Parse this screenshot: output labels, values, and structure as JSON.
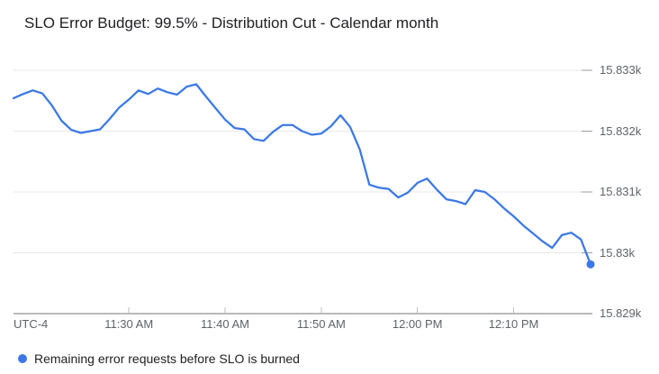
{
  "header": {
    "title": "SLO Error Budget: 99.5% - Distribution Cut - Calendar month"
  },
  "axes": {
    "utc_label": "UTC-4"
  },
  "legend": {
    "label": "Remaining error requests before SLO is burned"
  },
  "colors": {
    "accent": "#3b78e7",
    "grid": "#e8e8e8",
    "axis_line": "#757575",
    "tick": "#9e9e9e",
    "x_tick": "#bdbdbd",
    "muted_text": "#5f6368",
    "title_text": "#202124"
  },
  "chart_data": {
    "type": "line",
    "title": "SLO Error Budget: 99.5% - Distribution Cut - Calendar month",
    "xlabel": "Time (UTC-4)",
    "ylabel": "Remaining error requests before SLO is burned",
    "legend_position": "bottom-left",
    "grid": "horizontal",
    "y_axis_side": "right",
    "ylim": [
      15829,
      15833
    ],
    "x_range": [
      "11:18 AM",
      "12:18 PM"
    ],
    "y_ticks": [
      {
        "label": "15.833k",
        "value": 15833
      },
      {
        "label": "15.832k",
        "value": 15832
      },
      {
        "label": "15.831k",
        "value": 15831
      },
      {
        "label": "15.83k",
        "value": 15830
      },
      {
        "label": "15.829k",
        "value": 15829
      }
    ],
    "x_ticks": [
      {
        "label": "11:30 AM"
      },
      {
        "label": "11:40 AM"
      },
      {
        "label": "11:50 AM"
      },
      {
        "label": "12:00 PM"
      },
      {
        "label": "12:10 PM"
      }
    ],
    "series": [
      {
        "name": "Remaining error requests before SLO is burned",
        "color": "#3b78e7",
        "end_dot": true,
        "points": [
          {
            "t": "11:18 AM",
            "v": 15832.54
          },
          {
            "t": "11:19 AM",
            "v": 15832.61
          },
          {
            "t": "11:20 AM",
            "v": 15832.67
          },
          {
            "t": "11:21 AM",
            "v": 15832.62
          },
          {
            "t": "11:22 AM",
            "v": 15832.42
          },
          {
            "t": "11:23 AM",
            "v": 15832.17
          },
          {
            "t": "11:24 AM",
            "v": 15832.02
          },
          {
            "t": "11:25 AM",
            "v": 15831.97
          },
          {
            "t": "11:26 AM",
            "v": 15832.0
          },
          {
            "t": "11:27 AM",
            "v": 15832.03
          },
          {
            "t": "11:28 AM",
            "v": 15832.2
          },
          {
            "t": "11:29 AM",
            "v": 15832.39
          },
          {
            "t": "11:30 AM",
            "v": 15832.52
          },
          {
            "t": "11:31 AM",
            "v": 15832.67
          },
          {
            "t": "11:32 AM",
            "v": 15832.61
          },
          {
            "t": "11:33 AM",
            "v": 15832.7
          },
          {
            "t": "11:34 AM",
            "v": 15832.64
          },
          {
            "t": "11:35 AM",
            "v": 15832.6
          },
          {
            "t": "11:36 AM",
            "v": 15832.73
          },
          {
            "t": "11:37 AM",
            "v": 15832.77
          },
          {
            "t": "11:38 AM",
            "v": 15832.57
          },
          {
            "t": "11:39 AM",
            "v": 15832.38
          },
          {
            "t": "11:40 AM",
            "v": 15832.19
          },
          {
            "t": "11:41 AM",
            "v": 15832.05
          },
          {
            "t": "11:42 AM",
            "v": 15832.03
          },
          {
            "t": "11:43 AM",
            "v": 15831.87
          },
          {
            "t": "11:44 AM",
            "v": 15831.84
          },
          {
            "t": "11:45 AM",
            "v": 15831.99
          },
          {
            "t": "11:46 AM",
            "v": 15832.1
          },
          {
            "t": "11:47 AM",
            "v": 15832.1
          },
          {
            "t": "11:48 AM",
            "v": 15832.0
          },
          {
            "t": "11:49 AM",
            "v": 15831.94
          },
          {
            "t": "11:50 AM",
            "v": 15831.96
          },
          {
            "t": "11:51 AM",
            "v": 15832.08
          },
          {
            "t": "11:52 AM",
            "v": 15832.26
          },
          {
            "t": "11:53 AM",
            "v": 15832.07
          },
          {
            "t": "11:54 AM",
            "v": 15831.7
          },
          {
            "t": "11:55 AM",
            "v": 15831.12
          },
          {
            "t": "11:56 AM",
            "v": 15831.07
          },
          {
            "t": "11:57 AM",
            "v": 15831.05
          },
          {
            "t": "11:58 AM",
            "v": 15830.91
          },
          {
            "t": "11:59 AM",
            "v": 15830.99
          },
          {
            "t": "12:00 PM",
            "v": 15831.15
          },
          {
            "t": "12:01 PM",
            "v": 15831.22
          },
          {
            "t": "12:02 PM",
            "v": 15831.04
          },
          {
            "t": "12:03 PM",
            "v": 15830.88
          },
          {
            "t": "12:04 PM",
            "v": 15830.85
          },
          {
            "t": "12:05 PM",
            "v": 15830.8
          },
          {
            "t": "12:06 PM",
            "v": 15831.03
          },
          {
            "t": "12:07 PM",
            "v": 15831.0
          },
          {
            "t": "12:08 PM",
            "v": 15830.88
          },
          {
            "t": "12:09 PM",
            "v": 15830.73
          },
          {
            "t": "12:10 PM",
            "v": 15830.6
          },
          {
            "t": "12:11 PM",
            "v": 15830.45
          },
          {
            "t": "12:12 PM",
            "v": 15830.32
          },
          {
            "t": "12:13 PM",
            "v": 15830.19
          },
          {
            "t": "12:14 PM",
            "v": 15830.08
          },
          {
            "t": "12:15 PM",
            "v": 15830.29
          },
          {
            "t": "12:16 PM",
            "v": 15830.33
          },
          {
            "t": "12:17 PM",
            "v": 15830.22
          },
          {
            "t": "12:18 PM",
            "v": 15829.81
          }
        ]
      }
    ]
  }
}
